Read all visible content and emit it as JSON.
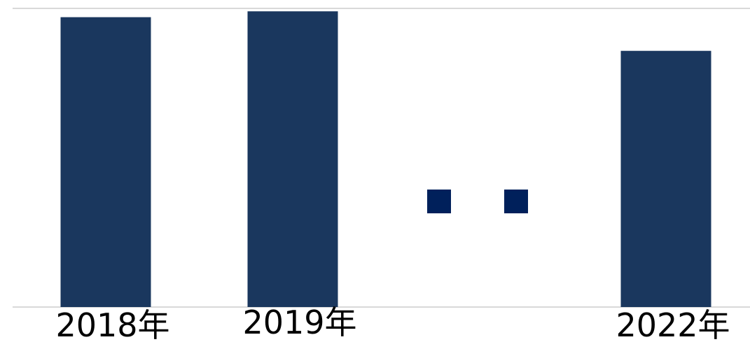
{
  "chart_data": {
    "type": "bar",
    "categories": [
      "2018年",
      "2019年",
      "2022年"
    ],
    "values": [
      99,
      101,
      87.5
    ],
    "ylim": [
      0,
      102
    ],
    "grid": true,
    "gap_markers": 2,
    "colors": {
      "bar": "#1a375e",
      "gap_marker": "#00205b",
      "gridline": "#d9d9d9"
    }
  }
}
